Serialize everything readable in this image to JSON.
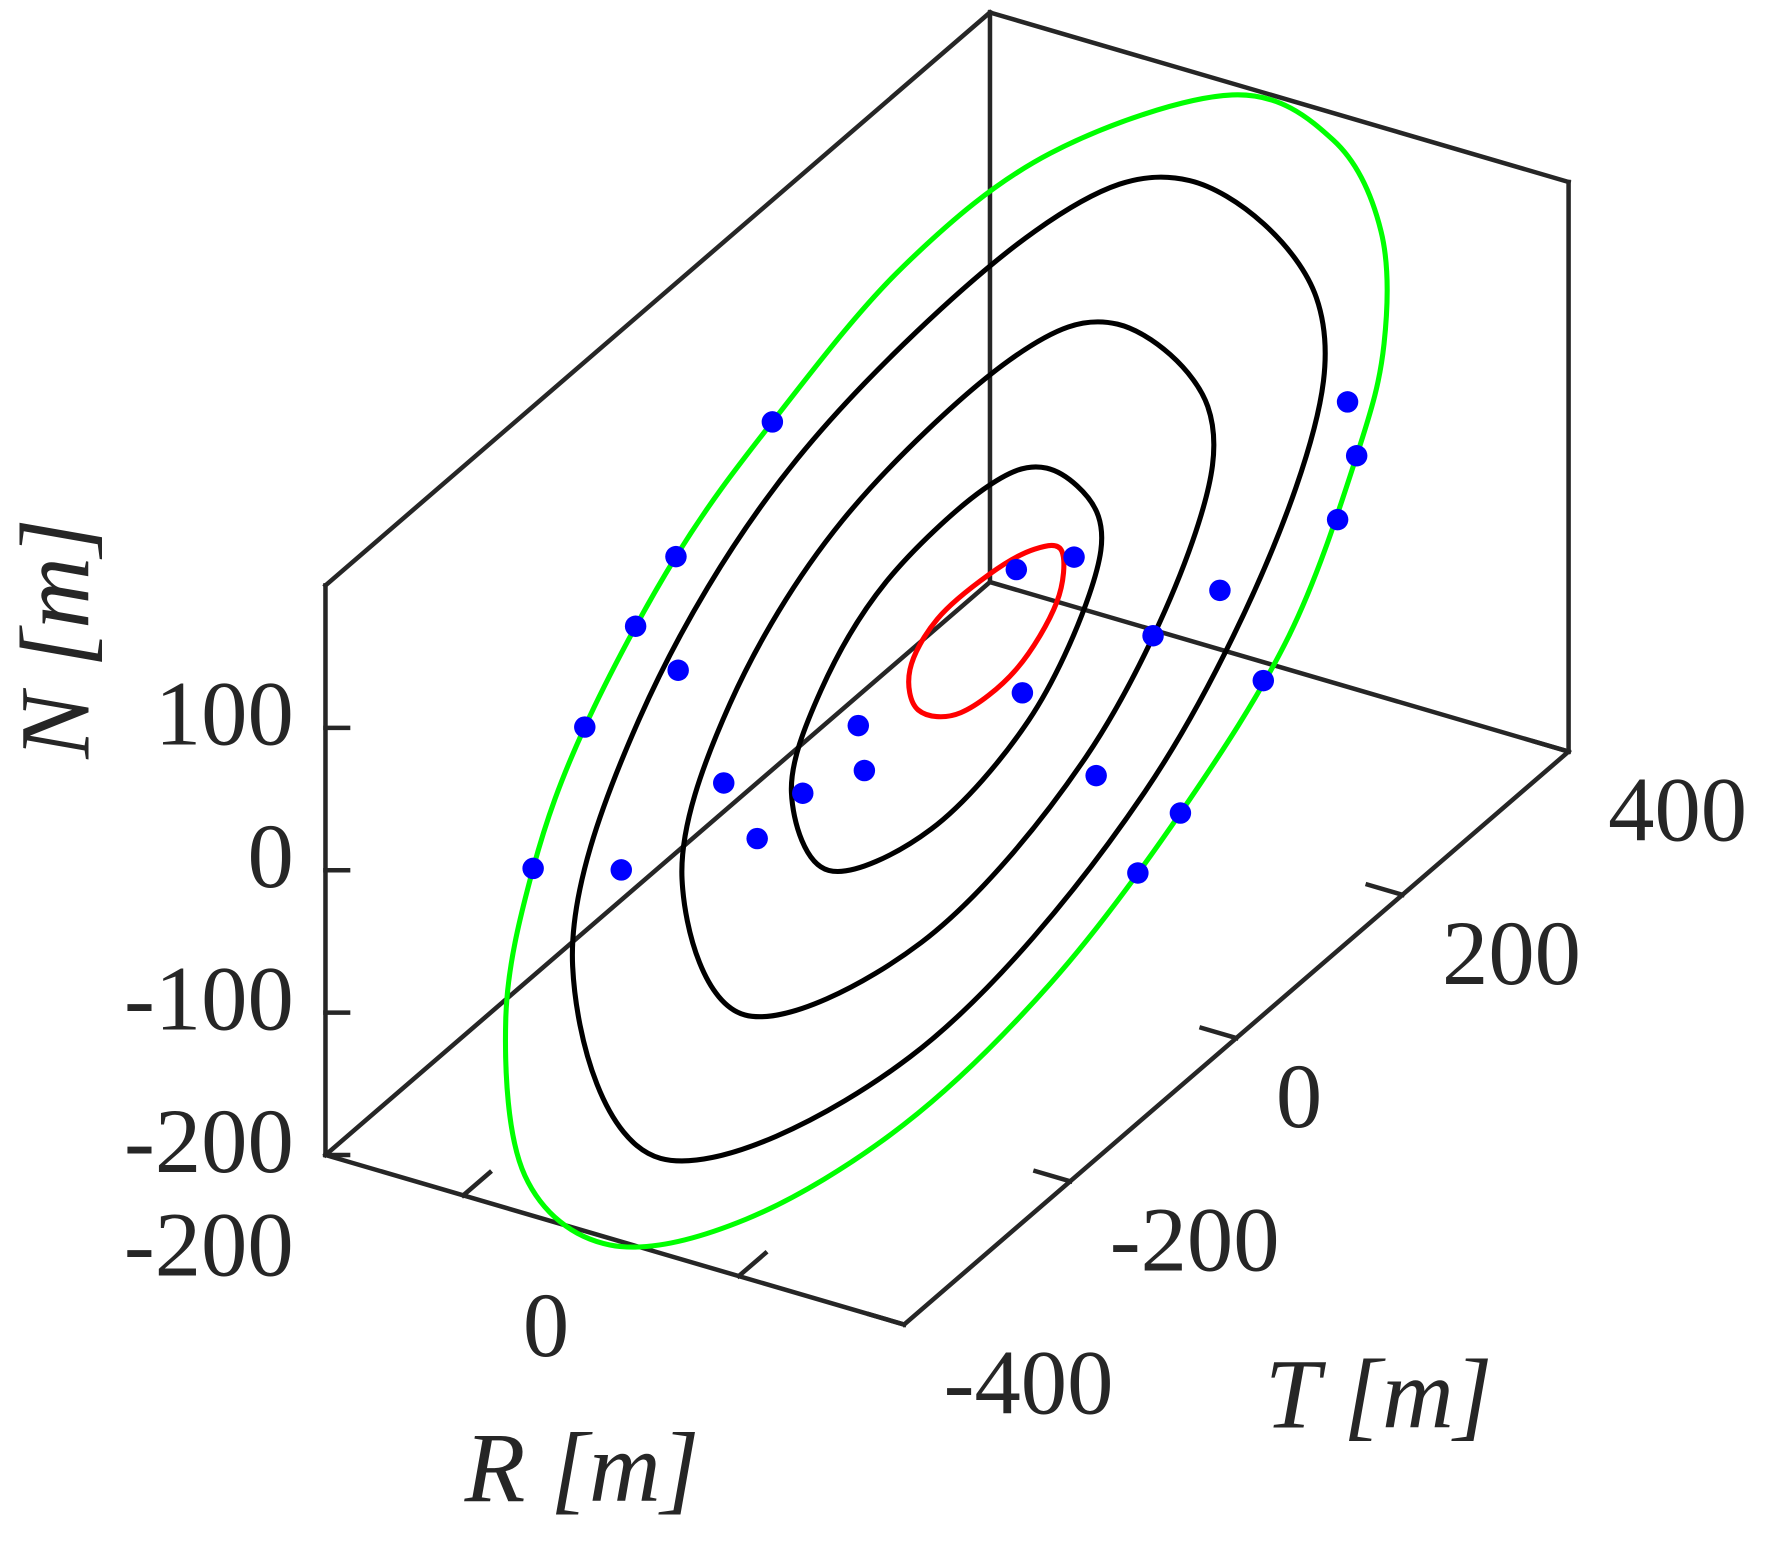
{
  "chart_data": {
    "type": "line3d",
    "xlabel": "R [m]",
    "ylabel": "T [m]",
    "zlabel": "N [m]",
    "xlim": [
      -300,
      120
    ],
    "ylim": [
      -400,
      400
    ],
    "zlim": [
      -200,
      200
    ],
    "xticks": [
      -200,
      0
    ],
    "yticks": [
      -400,
      -200,
      0,
      200,
      400
    ],
    "zticks": [
      -200,
      -100,
      0,
      100
    ],
    "series": [
      {
        "style": "line",
        "color": "#000000",
        "r": [
          39,
          81,
          74,
          24,
          -53,
          -135,
          -164,
          -142,
          -90,
          -12
        ],
        "t": [
          78,
          161,
          148,
          49,
          -106,
          -270,
          -328,
          -284,
          -180,
          -23
        ],
        "n": [
          340,
          228,
          99,
          -79,
          -209,
          -221,
          -65,
          93,
          238,
          341
        ]
      },
      {
        "style": "line",
        "color": "#000000",
        "r": [
          15,
          45,
          40,
          5,
          -49,
          -107,
          -128,
          -112,
          -75,
          -20
        ],
        "t": [
          31,
          90,
          80,
          10,
          -99,
          -215,
          -256,
          -225,
          -151,
          -41
        ],
        "n": [
          256,
          177,
          86,
          -40,
          -131,
          -140,
          -30,
          82,
          184,
          257
        ]
      },
      {
        "style": "line",
        "color": "#000000",
        "r": [
          -8,
          9,
          6,
          -14,
          -46,
          -80,
          -92,
          -82,
          -61,
          -29
        ],
        "t": [
          -16,
          18,
          12,
          -28,
          -92,
          -159,
          -184,
          -165,
          -122,
          -58
        ],
        "n": [
          172,
          126,
          73,
          -1,
          -54,
          -59,
          5,
          70,
          130,
          172
        ]
      },
      {
        "style": "line",
        "color": "#00ff00",
        "r": [
          53,
          86,
          102,
          103,
          94,
          72,
          36,
          -7,
          -55,
          -107,
          -152,
          -180,
          -186,
          -177,
          -160,
          -130,
          -98,
          -55,
          -7
        ],
        "t": [
          106,
          173,
          204,
          206,
          188,
          143,
          72,
          -13,
          -110,
          -214,
          -303,
          -359,
          -372,
          -354,
          -320,
          -260,
          -197,
          -110,
          -13
        ],
        "n": [
          390,
          334,
          259,
          179,
          107,
          -3,
          -102,
          -191,
          -255,
          -284,
          -270,
          -201,
          -86,
          13,
          100,
          198,
          270,
          348,
          392
        ]
      },
      {
        "style": "line",
        "color": "#ff0000",
        "r": [
          -3,
          -5,
          -18,
          -36,
          -50,
          -53,
          -44,
          -27,
          -12
        ],
        "t": [
          -6,
          -9,
          -36,
          -73,
          -101,
          -106,
          -88,
          -54,
          -24
        ],
        "n": [
          110,
          75,
          38,
          21,
          33,
          63,
          92,
          111,
          118
        ]
      },
      {
        "style": "markers",
        "color": "#0000ff",
        "r": [
          -98,
          -130,
          -143,
          -160,
          -177,
          91,
          94,
          88,
          63,
          36,
          22,
          -70,
          -68,
          -88,
          -103,
          -18,
          1,
          -16,
          27,
          8,
          -114,
          -129,
          -148,
          49
        ],
        "t": [
          -197,
          -260,
          -287,
          -320,
          -354,
          182,
          188,
          175,
          127,
          72,
          44,
          -140,
          -136,
          -177,
          -207,
          -36,
          2,
          -32,
          54,
          17,
          -229,
          -259,
          -296,
          98
        ],
        "n": [
          270,
          198,
          159,
          100,
          13,
          147,
          107,
          67,
          -29,
          -102,
          -134,
          36,
          3,
          2,
          -19,
          108,
          103,
          20,
          29,
          -56,
          28,
          118,
          -9,
          45
        ]
      }
    ]
  }
}
